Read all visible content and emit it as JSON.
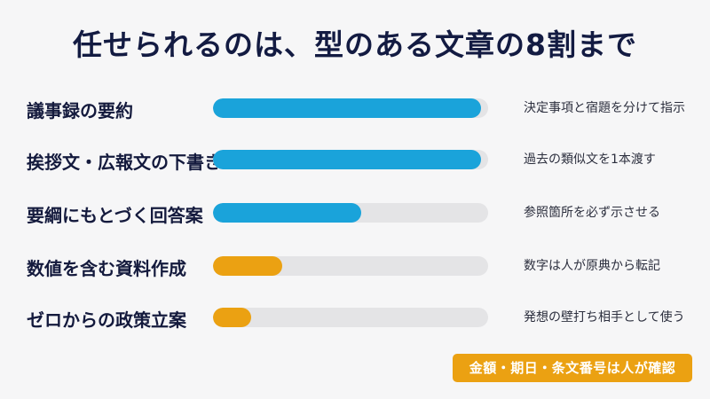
{
  "title": "任せられるのは、型のある文章の8割まで",
  "colors": {
    "blue": "#1aa3da",
    "orange": "#eba112",
    "track": "#e4e4e6"
  },
  "rows": [
    {
      "label": "議事録の要約",
      "level": 0.975,
      "color": "blue",
      "note": "決定事項と宿題を分けて指示"
    },
    {
      "label": "挨拶文・広報文の下書き",
      "level": 0.975,
      "color": "blue",
      "note": "過去の類似文を1本渡す"
    },
    {
      "label": "要綱にもとづく回答案",
      "level": 0.54,
      "color": "blue",
      "note": "参照箇所を必ず示させる"
    },
    {
      "label": "数値を含む資料作成",
      "level": 0.25,
      "color": "orange",
      "note": "数字は人が原典から転記"
    },
    {
      "label": "ゼロからの政策立案",
      "level": 0.14,
      "color": "orange",
      "note": "発想の壁打ち相手として使う"
    }
  ],
  "footer_badge": "金額・期日・条文番号は人が確認"
}
